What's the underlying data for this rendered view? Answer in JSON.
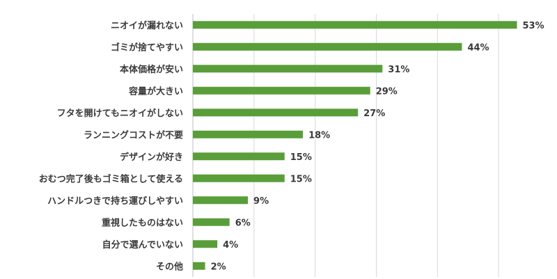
{
  "chart_data": {
    "type": "bar",
    "orientation": "horizontal",
    "title": "",
    "xlabel": "",
    "ylabel": "",
    "categories": [
      "ニオイが漏れない",
      "ゴミが捨てやすい",
      "本体価格が安い",
      "容量が大きい",
      "フタを開けてもニオイがしない",
      "ランニングコストが不要",
      "デザインが好き",
      "おむつ完了後もゴミ箱として使える",
      "ハンドルつきで持ち運びしやすい",
      "重視したものはない",
      "自分で選んでいない",
      "その他"
    ],
    "values": [
      53,
      44,
      31,
      29,
      27,
      18,
      15,
      15,
      9,
      6,
      4,
      2
    ],
    "value_labels": [
      "53%",
      "44%",
      "31%",
      "29%",
      "27%",
      "18%",
      "15%",
      "15%",
      "9%",
      "6%",
      "4%",
      "2%"
    ],
    "xlim": [
      0,
      60
    ],
    "grid": true,
    "legend": "none",
    "bar_color": "#5a9e3a"
  }
}
